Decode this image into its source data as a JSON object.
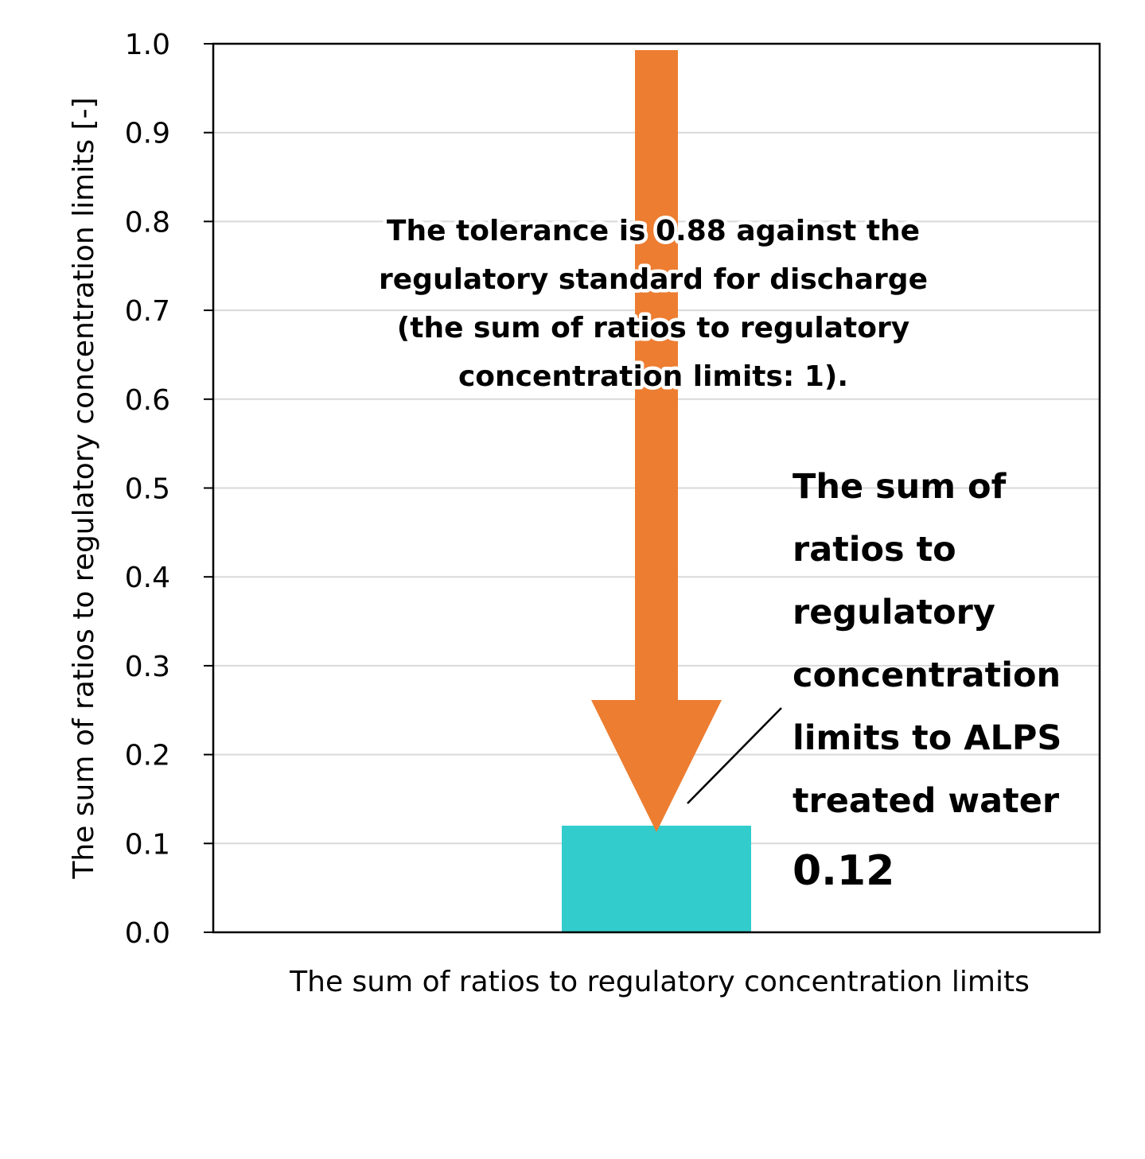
{
  "chart_data": {
    "type": "bar",
    "categories": [
      ""
    ],
    "values": [
      0.12
    ],
    "ylim": [
      0,
      1.0
    ],
    "yticks": [
      "0.0",
      "0.1",
      "0.2",
      "0.3",
      "0.4",
      "0.5",
      "0.6",
      "0.7",
      "0.8",
      "0.9",
      "1.0"
    ],
    "ylabel": "The sum of ratios to regulatory concentration limits [-]",
    "xlabel": "The sum of ratios to regulatory concentration limits",
    "grid": true,
    "bar_color": "#33CCCC",
    "arrow": {
      "from": 1.0,
      "to": 0.12,
      "color": "#ED7D31",
      "label_lines": [
        "The tolerance is 0.88 against the",
        "regulatory standard for discharge",
        "(the sum of ratios to regulatory",
        "concentration limits: 1)."
      ]
    },
    "bar_annotation": {
      "label_lines": [
        "The sum of",
        "ratios to",
        "regulatory",
        "concentration",
        "limits to ALPS",
        "treated water"
      ],
      "value_text": "0.12"
    }
  }
}
